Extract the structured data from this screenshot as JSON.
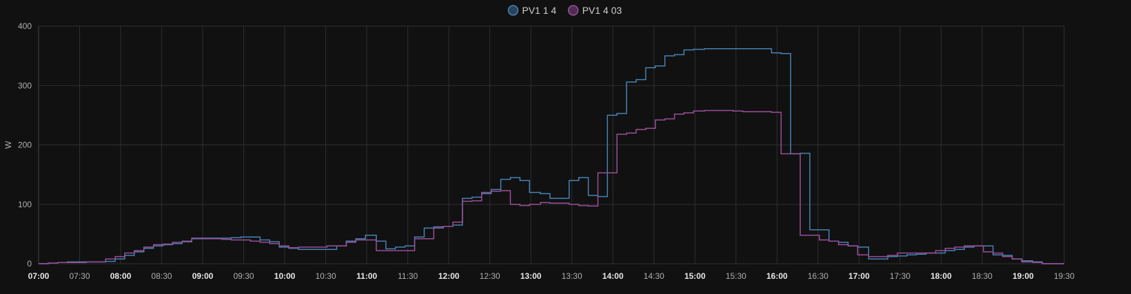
{
  "chart_data": {
    "type": "line",
    "step": true,
    "title": "",
    "xlabel": "",
    "ylabel": "W",
    "ylim": [
      0,
      400
    ],
    "xlim": [
      "07:00",
      "19:30"
    ],
    "yticks": [
      0,
      100,
      200,
      300,
      400
    ],
    "xticks": [
      {
        "label": "07:00",
        "major": true
      },
      {
        "label": "07:30",
        "major": false
      },
      {
        "label": "08:00",
        "major": true
      },
      {
        "label": "08:30",
        "major": false
      },
      {
        "label": "09:00",
        "major": true
      },
      {
        "label": "09:30",
        "major": false
      },
      {
        "label": "10:00",
        "major": true
      },
      {
        "label": "10:30",
        "major": false
      },
      {
        "label": "11:00",
        "major": true
      },
      {
        "label": "11:30",
        "major": false
      },
      {
        "label": "12:00",
        "major": true
      },
      {
        "label": "12:30",
        "major": false
      },
      {
        "label": "13:00",
        "major": true
      },
      {
        "label": "13:30",
        "major": false
      },
      {
        "label": "14:00",
        "major": true
      },
      {
        "label": "14:30",
        "major": false
      },
      {
        "label": "15:00",
        "major": true
      },
      {
        "label": "15:30",
        "major": false
      },
      {
        "label": "16:00",
        "major": true
      },
      {
        "label": "16:30",
        "major": false
      },
      {
        "label": "17:00",
        "major": true
      },
      {
        "label": "17:30",
        "major": false
      },
      {
        "label": "18:00",
        "major": true
      },
      {
        "label": "18:30",
        "major": false
      },
      {
        "label": "19:00",
        "major": true
      },
      {
        "label": "19:30",
        "major": false
      }
    ],
    "grid": true,
    "legend_position": "top-center",
    "series": [
      {
        "name": "PV1 1 4",
        "color": "#4682b4",
        "points": [
          [
            "07:00",
            0
          ],
          [
            "07:07",
            1
          ],
          [
            "07:14",
            2
          ],
          [
            "07:21",
            3
          ],
          [
            "07:28",
            3
          ],
          [
            "07:35",
            3
          ],
          [
            "07:42",
            3
          ],
          [
            "07:49",
            4
          ],
          [
            "07:56",
            8
          ],
          [
            "08:03",
            14
          ],
          [
            "08:10",
            20
          ],
          [
            "08:17",
            26
          ],
          [
            "08:24",
            30
          ],
          [
            "08:31",
            32
          ],
          [
            "08:38",
            34
          ],
          [
            "08:45",
            37
          ],
          [
            "08:52",
            42
          ],
          [
            "09:00",
            43
          ],
          [
            "09:07",
            43
          ],
          [
            "09:14",
            43
          ],
          [
            "09:21",
            44
          ],
          [
            "09:28",
            45
          ],
          [
            "09:35",
            45
          ],
          [
            "09:42",
            40
          ],
          [
            "09:49",
            37
          ],
          [
            "09:56",
            28
          ],
          [
            "10:03",
            26
          ],
          [
            "10:10",
            24
          ],
          [
            "10:17",
            24
          ],
          [
            "10:24",
            24
          ],
          [
            "10:31",
            24
          ],
          [
            "10:38",
            30
          ],
          [
            "10:45",
            38
          ],
          [
            "10:52",
            42
          ],
          [
            "10:59",
            48
          ],
          [
            "11:07",
            38
          ],
          [
            "11:14",
            25
          ],
          [
            "11:21",
            28
          ],
          [
            "11:28",
            30
          ],
          [
            "11:35",
            45
          ],
          [
            "11:42",
            60
          ],
          [
            "11:49",
            62
          ],
          [
            "11:56",
            63
          ],
          [
            "12:03",
            65
          ],
          [
            "12:10",
            110
          ],
          [
            "12:17",
            112
          ],
          [
            "12:24",
            118
          ],
          [
            "12:31",
            125
          ],
          [
            "12:38",
            142
          ],
          [
            "12:45",
            145
          ],
          [
            "12:52",
            140
          ],
          [
            "12:59",
            120
          ],
          [
            "13:07",
            118
          ],
          [
            "13:14",
            110
          ],
          [
            "13:21",
            110
          ],
          [
            "13:28",
            140
          ],
          [
            "13:35",
            145
          ],
          [
            "13:42",
            115
          ],
          [
            "13:49",
            113
          ],
          [
            "13:56",
            250
          ],
          [
            "14:03",
            253
          ],
          [
            "14:10",
            306
          ],
          [
            "14:17",
            310
          ],
          [
            "14:24",
            330
          ],
          [
            "14:31",
            333
          ],
          [
            "14:38",
            350
          ],
          [
            "14:45",
            352
          ],
          [
            "14:52",
            360
          ],
          [
            "14:59",
            361
          ],
          [
            "15:07",
            362
          ],
          [
            "15:14",
            362
          ],
          [
            "15:21",
            362
          ],
          [
            "15:28",
            362
          ],
          [
            "15:35",
            362
          ],
          [
            "15:42",
            362
          ],
          [
            "15:49",
            362
          ],
          [
            "15:56",
            355
          ],
          [
            "16:03",
            354
          ],
          [
            "16:10",
            185
          ],
          [
            "16:17",
            186
          ],
          [
            "16:24",
            57
          ],
          [
            "16:31",
            57
          ],
          [
            "16:38",
            38
          ],
          [
            "16:45",
            36
          ],
          [
            "16:52",
            30
          ],
          [
            "16:59",
            28
          ],
          [
            "17:07",
            8
          ],
          [
            "17:14",
            8
          ],
          [
            "17:21",
            12
          ],
          [
            "17:28",
            13
          ],
          [
            "17:35",
            15
          ],
          [
            "17:42",
            16
          ],
          [
            "17:49",
            18
          ],
          [
            "17:56",
            18
          ],
          [
            "18:03",
            22
          ],
          [
            "18:10",
            24
          ],
          [
            "18:17",
            28
          ],
          [
            "18:24",
            30
          ],
          [
            "18:31",
            30
          ],
          [
            "18:38",
            15
          ],
          [
            "18:45",
            14
          ],
          [
            "18:52",
            8
          ],
          [
            "18:59",
            5
          ],
          [
            "19:07",
            3
          ],
          [
            "19:14",
            0
          ],
          [
            "19:30",
            0
          ]
        ]
      },
      {
        "name": "PV1 4 03",
        "color": "#9b4f9b",
        "points": [
          [
            "07:00",
            0
          ],
          [
            "07:07",
            1
          ],
          [
            "07:14",
            2
          ],
          [
            "07:21",
            2
          ],
          [
            "07:28",
            2
          ],
          [
            "07:35",
            3
          ],
          [
            "07:42",
            3
          ],
          [
            "07:49",
            8
          ],
          [
            "07:56",
            12
          ],
          [
            "08:03",
            18
          ],
          [
            "08:10",
            22
          ],
          [
            "08:17",
            28
          ],
          [
            "08:24",
            32
          ],
          [
            "08:31",
            33
          ],
          [
            "08:38",
            36
          ],
          [
            "08:45",
            38
          ],
          [
            "08:52",
            43
          ],
          [
            "09:00",
            42
          ],
          [
            "09:07",
            42
          ],
          [
            "09:14",
            41
          ],
          [
            "09:21",
            40
          ],
          [
            "09:28",
            40
          ],
          [
            "09:35",
            38
          ],
          [
            "09:42",
            36
          ],
          [
            "09:49",
            34
          ],
          [
            "09:56",
            30
          ],
          [
            "10:03",
            27
          ],
          [
            "10:10",
            28
          ],
          [
            "10:17",
            28
          ],
          [
            "10:24",
            28
          ],
          [
            "10:31",
            30
          ],
          [
            "10:38",
            30
          ],
          [
            "10:45",
            36
          ],
          [
            "10:52",
            40
          ],
          [
            "10:59",
            40
          ],
          [
            "11:07",
            22
          ],
          [
            "11:14",
            22
          ],
          [
            "11:21",
            22
          ],
          [
            "11:28",
            22
          ],
          [
            "11:35",
            42
          ],
          [
            "11:42",
            42
          ],
          [
            "11:49",
            60
          ],
          [
            "11:56",
            63
          ],
          [
            "12:03",
            70
          ],
          [
            "12:10",
            105
          ],
          [
            "12:17",
            106
          ],
          [
            "12:24",
            120
          ],
          [
            "12:31",
            122
          ],
          [
            "12:38",
            123
          ],
          [
            "12:45",
            100
          ],
          [
            "12:52",
            98
          ],
          [
            "12:59",
            100
          ],
          [
            "13:07",
            103
          ],
          [
            "13:14",
            102
          ],
          [
            "13:21",
            102
          ],
          [
            "13:28",
            100
          ],
          [
            "13:35",
            98
          ],
          [
            "13:42",
            97
          ],
          [
            "13:49",
            153
          ],
          [
            "13:56",
            153
          ],
          [
            "14:03",
            218
          ],
          [
            "14:10",
            220
          ],
          [
            "14:17",
            226
          ],
          [
            "14:24",
            228
          ],
          [
            "14:31",
            242
          ],
          [
            "14:38",
            244
          ],
          [
            "14:45",
            252
          ],
          [
            "14:52",
            254
          ],
          [
            "14:59",
            257
          ],
          [
            "15:07",
            258
          ],
          [
            "15:14",
            258
          ],
          [
            "15:21",
            258
          ],
          [
            "15:28",
            257
          ],
          [
            "15:35",
            256
          ],
          [
            "15:42",
            256
          ],
          [
            "15:49",
            256
          ],
          [
            "15:56",
            255
          ],
          [
            "16:03",
            185
          ],
          [
            "16:10",
            185
          ],
          [
            "16:17",
            48
          ],
          [
            "16:24",
            48
          ],
          [
            "16:31",
            40
          ],
          [
            "16:38",
            38
          ],
          [
            "16:45",
            32
          ],
          [
            "16:52",
            30
          ],
          [
            "16:59",
            15
          ],
          [
            "17:07",
            12
          ],
          [
            "17:14",
            12
          ],
          [
            "17:21",
            14
          ],
          [
            "17:28",
            18
          ],
          [
            "17:35",
            18
          ],
          [
            "17:42",
            18
          ],
          [
            "17:49",
            18
          ],
          [
            "17:56",
            22
          ],
          [
            "18:03",
            26
          ],
          [
            "18:10",
            28
          ],
          [
            "18:17",
            30
          ],
          [
            "18:24",
            30
          ],
          [
            "18:31",
            20
          ],
          [
            "18:38",
            18
          ],
          [
            "18:45",
            12
          ],
          [
            "18:52",
            8
          ],
          [
            "18:59",
            3
          ],
          [
            "19:07",
            2
          ],
          [
            "19:14",
            0
          ],
          [
            "19:30",
            0
          ]
        ]
      }
    ]
  }
}
